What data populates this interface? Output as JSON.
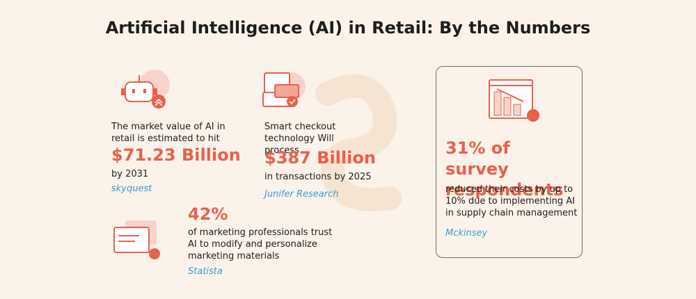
{
  "title": "Artificial Intelligence (AI) in Retail: By the Numbers",
  "stats": [
    {
      "intro": "The market value of AI in retail is estimated to hit",
      "highlight": "$71.23 Billion",
      "outro": "by 2031",
      "source": "skyquest"
    },
    {
      "intro": "Smart checkout technology Will process",
      "highlight": "$387 Billion",
      "outro": "in transactions by 2025",
      "source": "Junifer Research"
    },
    {
      "highlight": "42%",
      "outro": "of marketing professionals trust AI to modify and personalize marketing materials",
      "source": "Statista"
    },
    {
      "highlight": "31% of survey respondents",
      "outro": "reduced their costs by up to 10% due to implementing AI in supply chain management",
      "source": "Mckinsey"
    }
  ]
}
